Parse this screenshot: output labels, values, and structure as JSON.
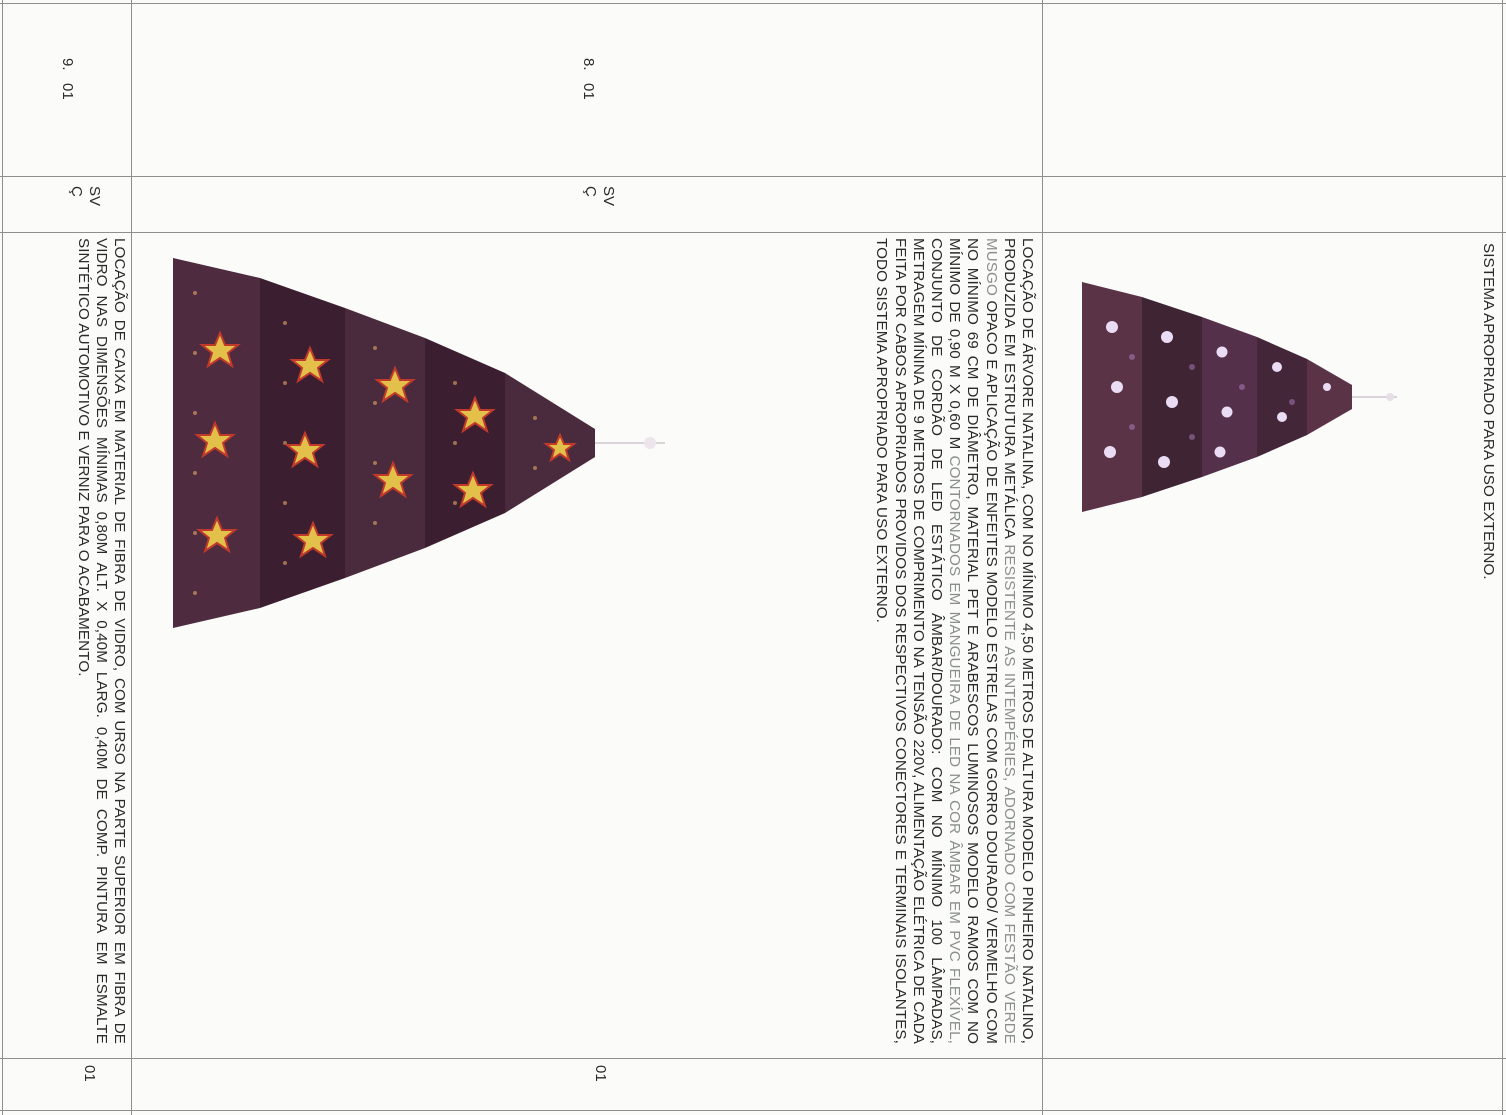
{
  "top_row": {
    "description": "SISTEMA APROPRIADO PARA USO EXTERNO."
  },
  "row8": {
    "item": "8.",
    "code": "01",
    "unit_line1": "SV",
    "unit_line2": "Ç",
    "description_parts": [
      "LOCAÇÃO DE ÁRVORE NATALINA, COM NO MÍNIMO 4,50 METROS DE ALTURA MODELO PINHEIRO NATALINO, PRODUZIDA EM ESTRUTURA METÁLICA ",
      "RESISTENTE AS INTEMPÉRIES, ADORNADO COM FESTÃO VERDE MUSGO",
      " OPACO E APLICAÇÃO DE ENFEITES MODELO ESTRELAS COM GORRO DOURADO/ VERMELHO COM NO MÍNIMO 69 CM DE DIÂMETRO, MATERIAL PET E ARABESCOS LUMINOSOS MODELO RAMOS COM NO MÍNIMO DE 0,90 m X 0,60 m ",
      "CONTORNADOS EM MANGUEIRA DE LED NA COR ÂMBAR EM PVC FLEXÍVEL,",
      " CONJUNTO DE CORDÃO DE LED ESTÁTICO ÂMBAR/DOURADO: COM NO MÍNIMO 100 LÂMPADAS, METRAGEM MÍNINA DE 9 METROS DE COMPRIMENTO NA TENSÃO 220V, ALIMENTAÇÃO ELÉTRICA DE CADA FEITA POR CABOS APROPRIADOS PROVIDOS DOS RESPECTIVOS CONECTORES E TERMINAIS ISOLANTES, TODO SISTEMA APROPRIADO PARA USO EXTERNO."
    ],
    "quantity": "01"
  },
  "row9": {
    "item": "9.",
    "code": "01",
    "unit_line1": "SV",
    "unit_line2": "Ç",
    "description": "LOCAÇÃO DE CAIXA EM MATERIAL DE FIBRA DE VIDRO, COM URSO NA PARTE SUPERIOR EM FIBRA DE VIDRO NAS DIMENSÕES MÍNIMAS 0,80M ALT. X 0,40M LARG. 0,40M DE COMP. PINTURA EM ESMALTE SINTÉTICO AUTOMOTIVO E VERNIZ PARA O ACABAMENTO.",
    "quantity": "01"
  },
  "colors": {
    "grid": "#8e8e8e",
    "text": "#2a2a2a",
    "grey_text": "#8a8f8a",
    "tree_body": "#4a2a3a",
    "tree_light": "#f0c060"
  }
}
